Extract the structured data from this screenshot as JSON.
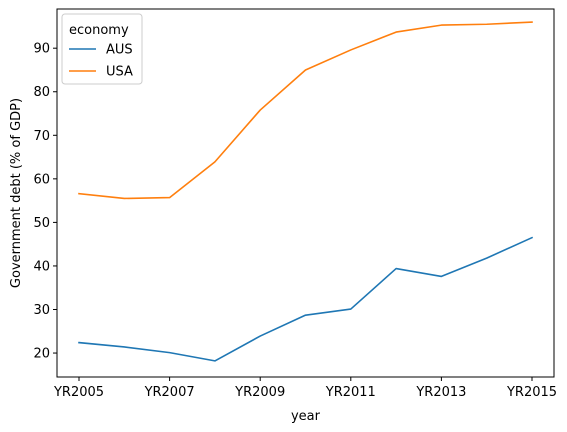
{
  "chart_data": {
    "type": "line",
    "x": [
      "YR2005",
      "YR2006",
      "YR2007",
      "YR2008",
      "YR2009",
      "YR2010",
      "YR2011",
      "YR2012",
      "YR2013",
      "YR2014",
      "YR2015"
    ],
    "xticks": [
      "YR2005",
      "YR2007",
      "YR2009",
      "YR2011",
      "YR2013",
      "YR2015"
    ],
    "series": [
      {
        "name": "AUS",
        "color": "#1f77b4",
        "values": [
          22.4,
          21.4,
          20.1,
          18.2,
          23.9,
          28.7,
          30.1,
          39.4,
          37.6,
          41.8,
          46.5
        ]
      },
      {
        "name": "USA",
        "color": "#ff7f0e",
        "values": [
          56.6,
          55.5,
          55.7,
          63.9,
          75.8,
          85.0,
          89.6,
          93.7,
          95.3,
          95.5,
          96.0
        ]
      }
    ],
    "xlabel": "year",
    "ylabel": "Government debt (% of GDP)",
    "ylim": [
      14.5,
      99.0
    ],
    "yticks": [
      20,
      30,
      40,
      50,
      60,
      70,
      80,
      90
    ],
    "legend": {
      "title": "economy",
      "placement": "top-left"
    },
    "grid": false
  }
}
